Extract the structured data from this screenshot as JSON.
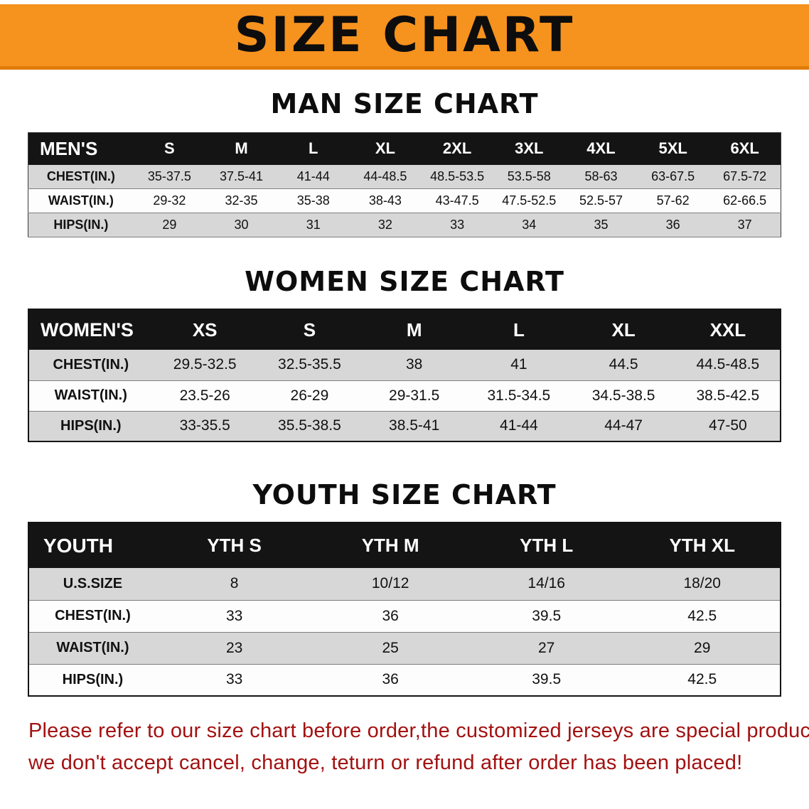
{
  "banner": {
    "title": "SIZE CHART",
    "bg_color": "#f6921e",
    "text_color": "#0d0d0d"
  },
  "sections": [
    {
      "title": "MAN SIZE CHART",
      "header_label": "MEN'S",
      "columns": [
        "S",
        "M",
        "L",
        "XL",
        "2XL",
        "3XL",
        "4XL",
        "5XL",
        "6XL"
      ],
      "rows": [
        {
          "label": "CHEST(IN.)",
          "values": [
            "35-37.5",
            "37.5-41",
            "41-44",
            "44-48.5",
            "48.5-53.5",
            "53.5-58",
            "58-63",
            "63-67.5",
            "67.5-72"
          ]
        },
        {
          "label": "WAIST(IN.)",
          "values": [
            "29-32",
            "32-35",
            "35-38",
            "38-43",
            "43-47.5",
            "47.5-52.5",
            "52.5-57",
            "57-62",
            "62-66.5"
          ]
        },
        {
          "label": "HIPS(IN.)",
          "values": [
            "29",
            "30",
            "31",
            "32",
            "33",
            "34",
            "35",
            "36",
            "37"
          ]
        }
      ]
    },
    {
      "title": "WOMEN SIZE CHART",
      "header_label": "WOMEN'S",
      "columns": [
        "XS",
        "S",
        "M",
        "L",
        "XL",
        "XXL"
      ],
      "rows": [
        {
          "label": "CHEST(IN.)",
          "values": [
            "29.5-32.5",
            "32.5-35.5",
            "38",
            "41",
            "44.5",
            "44.5-48.5"
          ]
        },
        {
          "label": "WAIST(IN.)",
          "values": [
            "23.5-26",
            "26-29",
            "29-31.5",
            "31.5-34.5",
            "34.5-38.5",
            "38.5-42.5"
          ]
        },
        {
          "label": "HIPS(IN.)",
          "values": [
            "33-35.5",
            "35.5-38.5",
            "38.5-41",
            "41-44",
            "44-47",
            "47-50"
          ]
        }
      ]
    },
    {
      "title": "YOUTH SIZE CHART",
      "header_label": "YOUTH",
      "columns": [
        "YTH S",
        "YTH M",
        "YTH L",
        "YTH XL"
      ],
      "rows": [
        {
          "label": "U.S.SIZE",
          "values": [
            "8",
            "10/12",
            "14/16",
            "18/20"
          ]
        },
        {
          "label": "CHEST(IN.)",
          "values": [
            "33",
            "36",
            "39.5",
            "42.5"
          ]
        },
        {
          "label": "WAIST(IN.)",
          "values": [
            "23",
            "25",
            "27",
            "29"
          ]
        },
        {
          "label": "HIPS(IN.)",
          "values": [
            "33",
            "36",
            "39.5",
            "42.5"
          ]
        }
      ]
    }
  ],
  "disclaimer": {
    "color": "#a31111",
    "lines": [
      "Please refer to our size chart before order,the customized jerseys are special products,",
      "we don't accept cancel, change, teturn or refund after order has been placed!"
    ]
  }
}
